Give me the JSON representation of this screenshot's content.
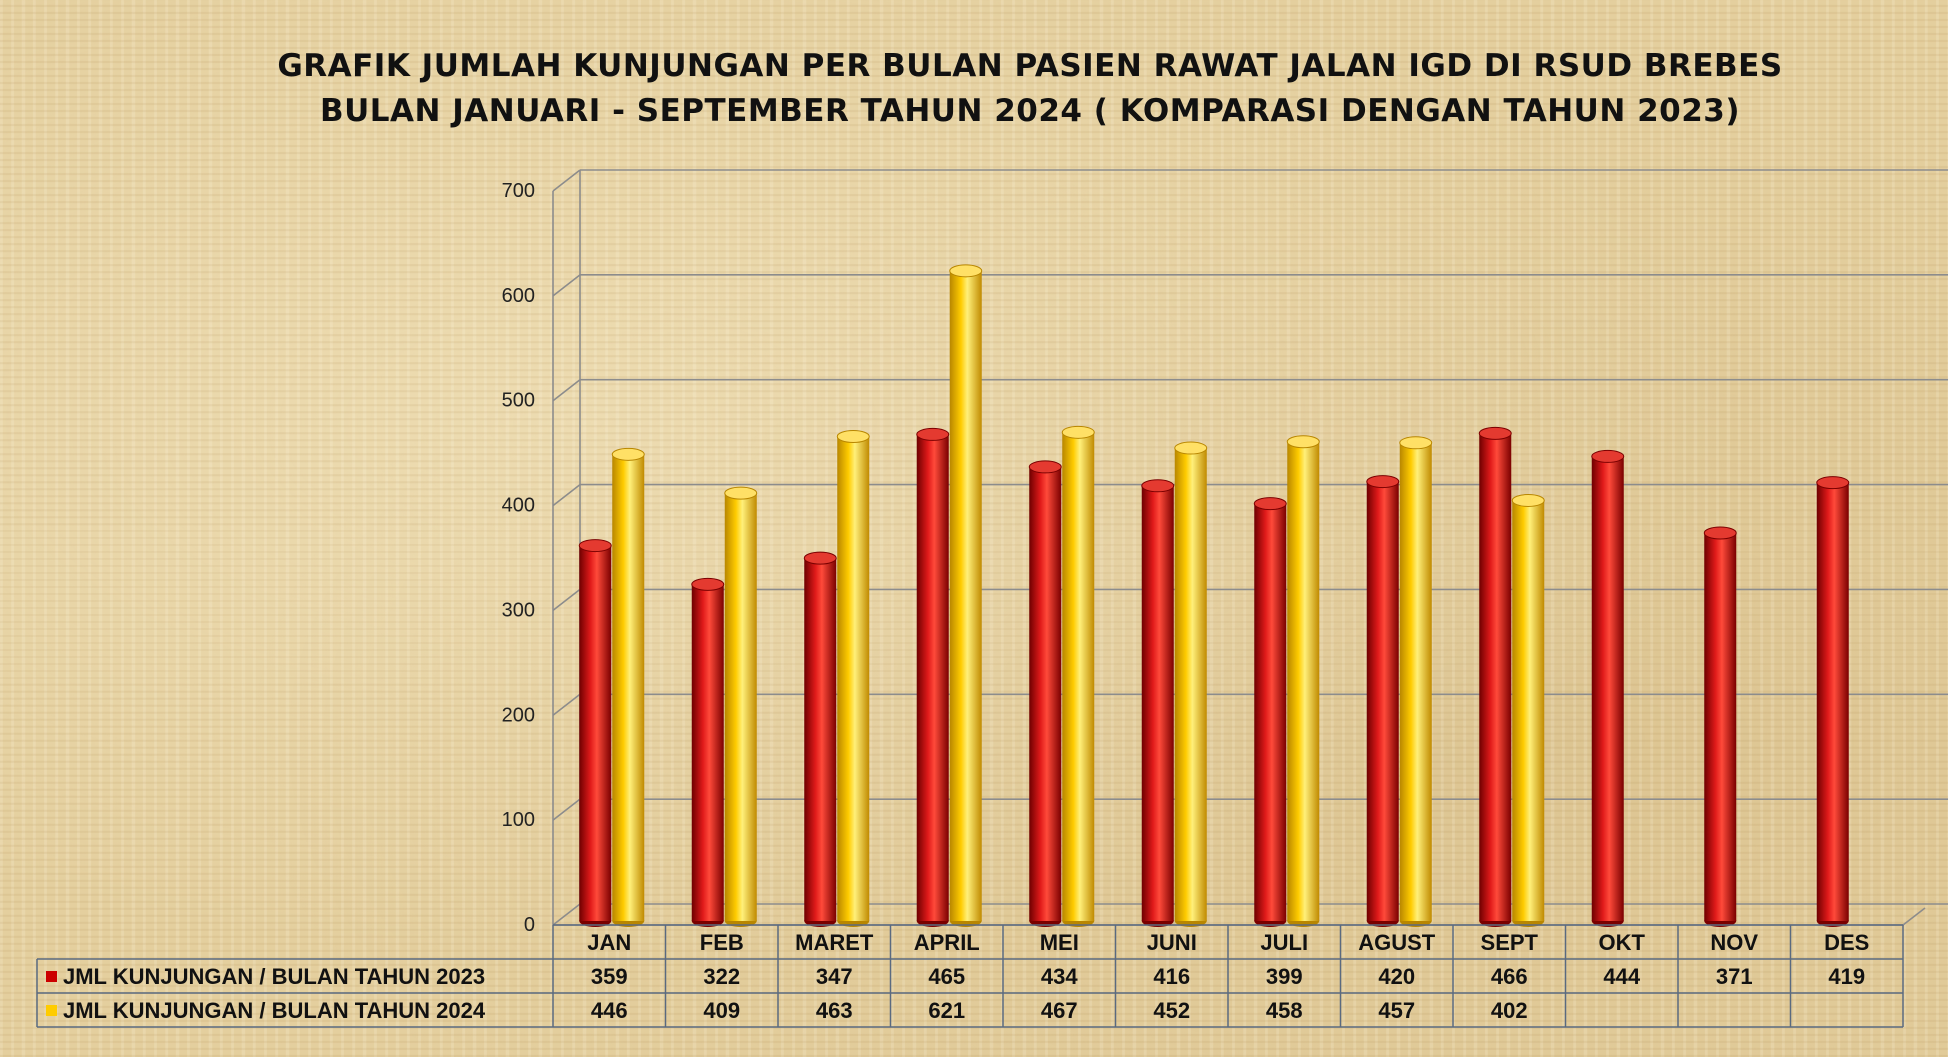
{
  "chart_data": {
    "type": "bar",
    "title": [
      "GRAFIK JUMLAH KUNJUNGAN PER BULAN PASIEN RAWAT JALAN IGD DI RSUD BREBES",
      "BULAN JANUARI - SEPTEMBER TAHUN 2024 ( KOMPARASI DENGAN TAHUN 2023)"
    ],
    "categories": [
      "JAN",
      "FEB",
      "MARET",
      "APRIL",
      "MEI",
      "JUNI",
      "JULI",
      "AGUST",
      "SEPT",
      "OKT",
      "NOV",
      "DES"
    ],
    "series": [
      {
        "name": "JML KUNJUNGAN / BULAN TAHUN 2023",
        "color": "#cc0000",
        "values": [
          359,
          322,
          347,
          465,
          434,
          416,
          399,
          420,
          466,
          444,
          371,
          419
        ]
      },
      {
        "name": "JML KUNJUNGAN / BULAN TAHUN 2024",
        "color": "#ffcc00",
        "values": [
          446,
          409,
          463,
          621,
          467,
          452,
          458,
          457,
          402,
          null,
          null,
          null
        ]
      }
    ],
    "ylim": [
      0,
      700
    ],
    "yticks": [
      0,
      100,
      200,
      300,
      400,
      500,
      600,
      700
    ],
    "grid": true,
    "legend": "data-table"
  }
}
